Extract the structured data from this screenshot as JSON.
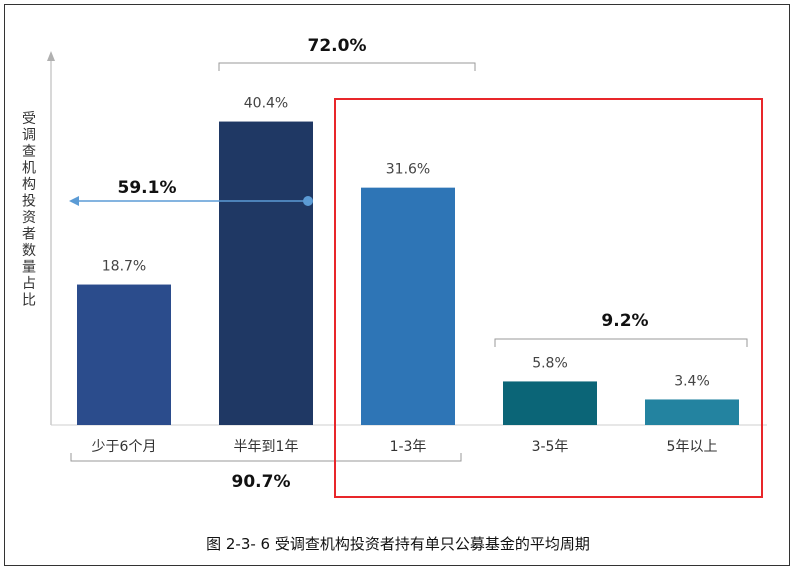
{
  "chart_data": {
    "type": "bar",
    "ylabel": "受调查机构投资者数量占比",
    "categories": [
      "少于6个月",
      "半年到1年",
      "1-3年",
      "3-5年",
      "5年以上"
    ],
    "values": [
      18.7,
      40.4,
      31.6,
      5.8,
      3.4
    ],
    "value_labels": [
      "18.7%",
      "40.4%",
      "31.6%",
      "5.8%",
      "3.4%"
    ],
    "ylim": [
      0,
      45
    ],
    "grid": false,
    "annotations": {
      "top_bracket": {
        "label": "72.0%",
        "categories": [
          "半年到1年",
          "1-3年"
        ]
      },
      "arrow": {
        "label": "59.1%"
      },
      "right_bracket": {
        "label": "9.2%",
        "categories": [
          "3-5年",
          "5年以上"
        ]
      },
      "bottom_bracket": {
        "label": "90.7%",
        "categories": [
          "少于6个月",
          "半年到1年",
          "1-3年"
        ]
      },
      "highlight_box_color": "#e8262a"
    },
    "colors": [
      "#2b4c8c",
      "#1f3864",
      "#2e75b6",
      "#0b6577",
      "#2383a0"
    ]
  },
  "caption": "图 2-3- 6  受调查机构投资者持有单只公募基金的平均周期"
}
